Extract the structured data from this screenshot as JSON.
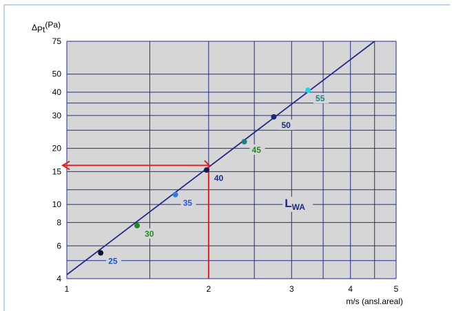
{
  "colors": {
    "plot_bg": "#d6d6d6",
    "grid": "#1f2a8c",
    "line": "#1f2a8c",
    "arrow": "#dd2222",
    "frame_top": "#a9c4e8",
    "frame_left": "#a9c4e8"
  },
  "chart_data": {
    "type": "line",
    "title": "",
    "xlabel": "m/s (ansl.areal)",
    "ylabel": {
      "prefix": "Δ",
      "sub": "Pt",
      "unit": "(Pa)"
    },
    "xscale": "log",
    "yscale": "log",
    "xlim": [
      1,
      5
    ],
    "ylim": [
      4,
      75
    ],
    "x_major_ticks": [
      1,
      2,
      3,
      4,
      5
    ],
    "x_minor_ticks": [
      1.5,
      2.5,
      3.5,
      4.5
    ],
    "y_ticks": [
      4,
      6,
      8,
      10,
      15,
      20,
      30,
      40,
      50,
      75
    ],
    "y_extra_gridlines": [
      5,
      12,
      25,
      35
    ],
    "grid": true,
    "line": [
      {
        "x": 1,
        "y": 4.2
      },
      {
        "x": 4.5,
        "y": 75
      }
    ],
    "points": [
      {
        "x": 1.18,
        "y": 5.5,
        "label": "25",
        "color": "#111133",
        "label_color": "#1a55dd"
      },
      {
        "x": 1.41,
        "y": 7.7,
        "label": "30",
        "color": "#1f8a1f",
        "label_color": "#1f8a1f"
      },
      {
        "x": 1.7,
        "y": 11.3,
        "label": "35",
        "color": "#2a7ae8",
        "label_color": "#2a55dd"
      },
      {
        "x": 1.98,
        "y": 15.3,
        "label": "40",
        "color": "#1a1a5a",
        "label_color": "#1a2a8c"
      },
      {
        "x": 2.38,
        "y": 21.7,
        "label": "45",
        "color": "#1a8080",
        "label_color": "#1f8a1f"
      },
      {
        "x": 2.75,
        "y": 29.5,
        "label": "50",
        "color": "#1a2a7a",
        "label_color": "#1a2a7a"
      },
      {
        "x": 3.25,
        "y": 41,
        "label": "55",
        "color": "#22d4e8",
        "label_color": "#1a8080"
      }
    ],
    "annotation": {
      "text": "L",
      "sub": "WA",
      "x": 2.9,
      "y": 10.2
    },
    "reading_example": {
      "x": 2,
      "y": 16.2,
      "y_from": 4
    }
  }
}
